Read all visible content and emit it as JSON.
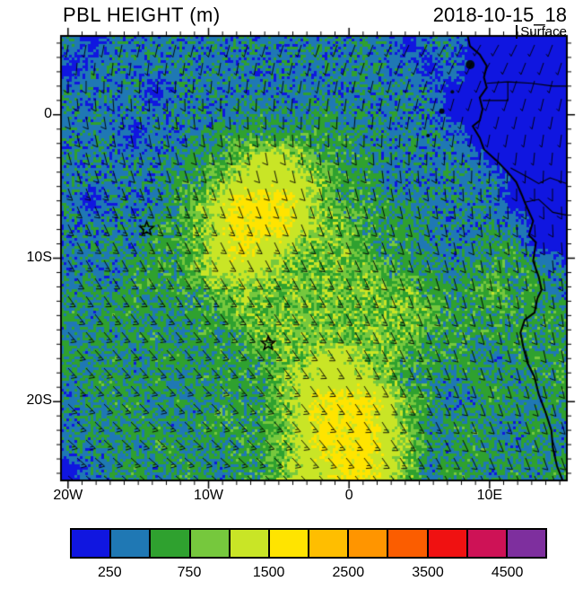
{
  "header": {
    "title": "PBL HEIGHT (m)",
    "datetime": "2018-10-15_18",
    "level": "Surface"
  },
  "axes": {
    "x_ticks": [
      {
        "label": "20W",
        "lon": -20
      },
      {
        "label": "10W",
        "lon": -10
      },
      {
        "label": "0",
        "lon": 0
      },
      {
        "label": "10E",
        "lon": 10
      }
    ],
    "y_ticks": [
      {
        "label": "0",
        "lat": 0
      },
      {
        "label": "10S",
        "lat": -10
      },
      {
        "label": "20S",
        "lat": -20
      }
    ],
    "minor_tick_interval_deg": 1
  },
  "colorbar": {
    "colors": [
      "#1016e0",
      "#1f78b4",
      "#2fa12f",
      "#76c83d",
      "#c9e526",
      "#ffe400",
      "#ffbe00",
      "#ff9500",
      "#fb5d00",
      "#f01111",
      "#ce1256",
      "#7e2f9e"
    ],
    "levels": [
      250,
      500,
      750,
      1000,
      1500,
      2000,
      2500,
      3000,
      3500,
      4000,
      4500
    ],
    "labels": [
      "250",
      "750",
      "1500",
      "2500",
      "3500",
      "4500"
    ],
    "labeled_boundaries": [
      0,
      2,
      4,
      6,
      8,
      10
    ],
    "units": "m"
  },
  "chart_data": {
    "type": "heatmap",
    "title": "PBL HEIGHT (m)",
    "datetime": "2018-10-15_18",
    "level": "Surface",
    "units": "m",
    "field": {
      "lon_range": [
        -20.5,
        15.5
      ],
      "lat_range": [
        5.5,
        -25.5
      ],
      "values": [
        [
          400,
          150,
          400,
          400,
          400,
          400,
          400,
          400,
          400,
          400,
          400,
          400,
          400,
          400,
          400,
          400,
          150,
          400,
          400,
          150,
          150,
          150,
          150,
          150
        ],
        [
          150,
          400,
          400,
          400,
          400,
          400,
          400,
          400,
          400,
          400,
          400,
          400,
          400,
          400,
          400,
          400,
          400,
          150,
          400,
          150,
          150,
          150,
          150,
          150
        ],
        [
          400,
          400,
          400,
          400,
          150,
          400,
          400,
          400,
          400,
          400,
          400,
          400,
          400,
          400,
          400,
          400,
          400,
          400,
          150,
          150,
          150,
          150,
          150,
          150
        ],
        [
          400,
          400,
          400,
          400,
          400,
          400,
          400,
          400,
          400,
          600,
          400,
          400,
          600,
          400,
          400,
          400,
          400,
          400,
          150,
          150,
          150,
          150,
          150,
          150
        ],
        [
          400,
          400,
          400,
          150,
          400,
          400,
          400,
          600,
          600,
          600,
          600,
          600,
          600,
          600,
          400,
          400,
          400,
          400,
          400,
          150,
          150,
          150,
          150,
          150
        ],
        [
          400,
          400,
          400,
          400,
          400,
          400,
          600,
          600,
          850,
          1200,
          1200,
          850,
          600,
          600,
          600,
          400,
          400,
          400,
          400,
          400,
          150,
          150,
          150,
          150
        ],
        [
          400,
          400,
          400,
          400,
          400,
          600,
          600,
          850,
          1200,
          1200,
          1200,
          1200,
          850,
          600,
          600,
          400,
          400,
          400,
          400,
          400,
          400,
          150,
          150,
          150
        ],
        [
          400,
          150,
          400,
          400,
          400,
          600,
          850,
          1200,
          1700,
          1700,
          1700,
          1200,
          850,
          600,
          600,
          600,
          400,
          400,
          400,
          400,
          400,
          150,
          150,
          150
        ],
        [
          400,
          400,
          400,
          400,
          600,
          600,
          850,
          1200,
          1700,
          1700,
          1700,
          1200,
          850,
          850,
          600,
          600,
          600,
          400,
          400,
          400,
          400,
          400,
          150,
          150
        ],
        [
          400,
          400,
          600,
          400,
          600,
          600,
          850,
          1200,
          1700,
          1200,
          1200,
          850,
          850,
          850,
          600,
          600,
          600,
          400,
          400,
          400,
          600,
          600,
          150,
          150
        ],
        [
          400,
          400,
          400,
          600,
          600,
          600,
          850,
          1200,
          1200,
          1200,
          850,
          850,
          850,
          850,
          850,
          600,
          600,
          600,
          400,
          600,
          600,
          600,
          600,
          400
        ],
        [
          400,
          600,
          400,
          600,
          600,
          600,
          600,
          850,
          850,
          850,
          850,
          850,
          850,
          850,
          850,
          850,
          850,
          600,
          600,
          600,
          850,
          600,
          600,
          400
        ],
        [
          600,
          400,
          600,
          600,
          400,
          600,
          600,
          600,
          850,
          850,
          850,
          850,
          850,
          850,
          850,
          850,
          850,
          850,
          600,
          600,
          600,
          600,
          600,
          600
        ],
        [
          400,
          600,
          400,
          600,
          600,
          400,
          600,
          600,
          600,
          850,
          850,
          850,
          850,
          850,
          850,
          850,
          850,
          600,
          600,
          600,
          600,
          600,
          600,
          600
        ],
        [
          600,
          400,
          600,
          400,
          600,
          600,
          400,
          600,
          600,
          600,
          850,
          850,
          1200,
          1200,
          850,
          850,
          600,
          600,
          600,
          600,
          400,
          600,
          600,
          600
        ],
        [
          400,
          600,
          600,
          400,
          600,
          400,
          600,
          600,
          600,
          600,
          850,
          1200,
          1200,
          1200,
          1200,
          850,
          600,
          600,
          400,
          600,
          600,
          400,
          600,
          600
        ],
        [
          400,
          400,
          600,
          600,
          400,
          600,
          400,
          600,
          600,
          600,
          850,
          1200,
          1700,
          1700,
          1700,
          1200,
          850,
          600,
          400,
          400,
          600,
          600,
          400,
          600
        ],
        [
          400,
          600,
          400,
          600,
          600,
          400,
          600,
          600,
          600,
          600,
          850,
          1200,
          1700,
          1700,
          1700,
          1200,
          850,
          400,
          600,
          600,
          400,
          400,
          600,
          400
        ],
        [
          400,
          400,
          600,
          400,
          600,
          600,
          400,
          600,
          600,
          600,
          850,
          1200,
          1700,
          1700,
          1700,
          1200,
          850,
          600,
          400,
          600,
          600,
          400,
          600,
          400
        ],
        [
          150,
          400,
          400,
          600,
          400,
          600,
          600,
          400,
          600,
          600,
          850,
          1200,
          1200,
          1700,
          1700,
          1200,
          850,
          400,
          600,
          600,
          400,
          600,
          400,
          600
        ]
      ]
    },
    "wind": {
      "lons": [
        -20,
        -10,
        0,
        10,
        15
      ],
      "lats": [
        5,
        0,
        -5,
        -10,
        -15,
        -20,
        -25
      ],
      "dir_from_deg": [
        [
          190,
          195,
          200,
          210,
          200
        ],
        [
          170,
          175,
          185,
          195,
          190
        ],
        [
          160,
          160,
          165,
          180,
          180
        ],
        [
          150,
          150,
          155,
          170,
          175
        ],
        [
          140,
          140,
          150,
          165,
          170
        ],
        [
          135,
          135,
          145,
          160,
          165
        ],
        [
          130,
          130,
          140,
          155,
          160
        ]
      ],
      "speed_kt": [
        [
          8,
          8,
          8,
          8,
          8
        ],
        [
          12,
          12,
          10,
          8,
          8
        ],
        [
          14,
          14,
          12,
          10,
          10
        ],
        [
          15,
          15,
          14,
          12,
          10
        ],
        [
          16,
          16,
          15,
          13,
          11
        ],
        [
          16,
          17,
          16,
          13,
          11
        ],
        [
          15,
          16,
          16,
          13,
          11
        ]
      ]
    },
    "coastline": [
      [
        8.4,
        5.7
      ],
      [
        8.6,
        4.8
      ],
      [
        9.3,
        4.2
      ],
      [
        9.8,
        3.4
      ],
      [
        9.6,
        2.6
      ],
      [
        9.8,
        1.9
      ],
      [
        9.3,
        1.2
      ],
      [
        9.5,
        0.4
      ],
      [
        9.3,
        -0.4
      ],
      [
        8.8,
        -0.8
      ],
      [
        9.3,
        -1.6
      ],
      [
        9.6,
        -2.4
      ],
      [
        10.5,
        -3.2
      ],
      [
        11.2,
        -3.9
      ],
      [
        11.9,
        -4.7
      ],
      [
        12.3,
        -5.6
      ],
      [
        12.5,
        -6.1
      ],
      [
        13.1,
        -7.4
      ],
      [
        12.8,
        -8.4
      ],
      [
        13.3,
        -8.9
      ],
      [
        13.1,
        -10.2
      ],
      [
        13.5,
        -11.3
      ],
      [
        13.7,
        -12.2
      ],
      [
        13.4,
        -12.8
      ],
      [
        13.2,
        -13.8
      ],
      [
        12.5,
        -14.3
      ],
      [
        12.2,
        -15.2
      ],
      [
        12.4,
        -16.2
      ],
      [
        12.7,
        -17.3
      ],
      [
        13.2,
        -18.3
      ],
      [
        13.5,
        -19.5
      ],
      [
        14.0,
        -20.8
      ],
      [
        14.4,
        -22.0
      ],
      [
        14.5,
        -23.2
      ],
      [
        14.8,
        -24.5
      ],
      [
        15.2,
        -25.5
      ]
    ],
    "borders": [
      [
        [
          9.8,
          2.2
        ],
        [
          11.3,
          2.3
        ],
        [
          13.0,
          2.2
        ],
        [
          14.5,
          2.0
        ],
        [
          15.5,
          2.0
        ]
      ],
      [
        [
          9.5,
          1.0
        ],
        [
          11.3,
          1.0
        ],
        [
          11.3,
          2.25
        ]
      ],
      [
        [
          11.5,
          -3.7
        ],
        [
          12.8,
          -4.4
        ],
        [
          13.5,
          -4.8
        ],
        [
          14.3,
          -4.4
        ],
        [
          15.5,
          -4.8
        ]
      ],
      [
        [
          12.5,
          -6.1
        ],
        [
          13.5,
          -5.9
        ],
        [
          14.5,
          -6.8
        ],
        [
          15.5,
          -7.0
        ]
      ]
    ],
    "islands": [
      {
        "lon": 8.62,
        "lat": 3.5,
        "r": 5
      },
      {
        "lon": 7.35,
        "lat": 1.6,
        "r": 2
      },
      {
        "lon": 6.6,
        "lat": 0.25,
        "r": 3
      },
      {
        "lon": 5.62,
        "lat": -1.45,
        "r": 2
      }
    ],
    "markers": [
      {
        "symbol": "star",
        "lon": -14.4,
        "lat": -7.95
      },
      {
        "symbol": "star",
        "lon": -5.75,
        "lat": -15.95
      }
    ]
  }
}
